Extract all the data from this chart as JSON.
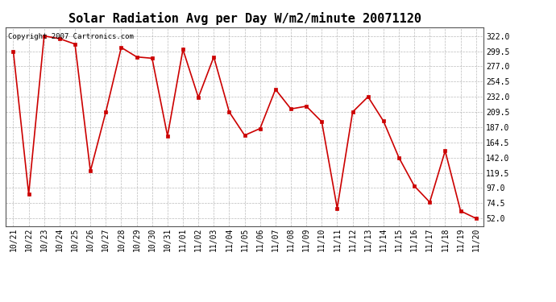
{
  "title": "Solar Radiation Avg per Day W/m2/minute 20071120",
  "copyright_text": "Copyright 2007 Cartronics.com",
  "dates": [
    "10/21",
    "10/22",
    "10/23",
    "10/24",
    "10/25",
    "10/26",
    "10/27",
    "10/28",
    "10/29",
    "10/30",
    "10/31",
    "11/01",
    "11/02",
    "11/03",
    "11/04",
    "11/05",
    "11/06",
    "11/07",
    "11/08",
    "11/09",
    "11/10",
    "11/11",
    "11/12",
    "11/13",
    "11/14",
    "11/15",
    "11/16",
    "11/17",
    "11/18",
    "11/19",
    "11/20"
  ],
  "values": [
    299.5,
    88.0,
    322.0,
    318.0,
    310.0,
    122.0,
    209.5,
    305.0,
    291.0,
    289.0,
    174.0,
    302.0,
    231.0,
    291.0,
    209.5,
    175.0,
    185.0,
    243.0,
    214.0,
    218.0,
    195.0,
    67.0,
    209.5,
    232.0,
    196.0,
    142.0,
    100.0,
    76.0,
    152.0,
    63.0,
    52.0
  ],
  "yticks": [
    52.0,
    74.5,
    97.0,
    119.5,
    142.0,
    164.5,
    187.0,
    209.5,
    232.0,
    254.5,
    277.0,
    299.5,
    322.0
  ],
  "ymin": 40.0,
  "ymax": 335.0,
  "line_color": "#cc0000",
  "marker_color": "#cc0000",
  "background_color": "#ffffff",
  "grid_color": "#aaaaaa",
  "title_fontsize": 11,
  "tick_fontsize": 7,
  "copyright_fontsize": 6.5
}
